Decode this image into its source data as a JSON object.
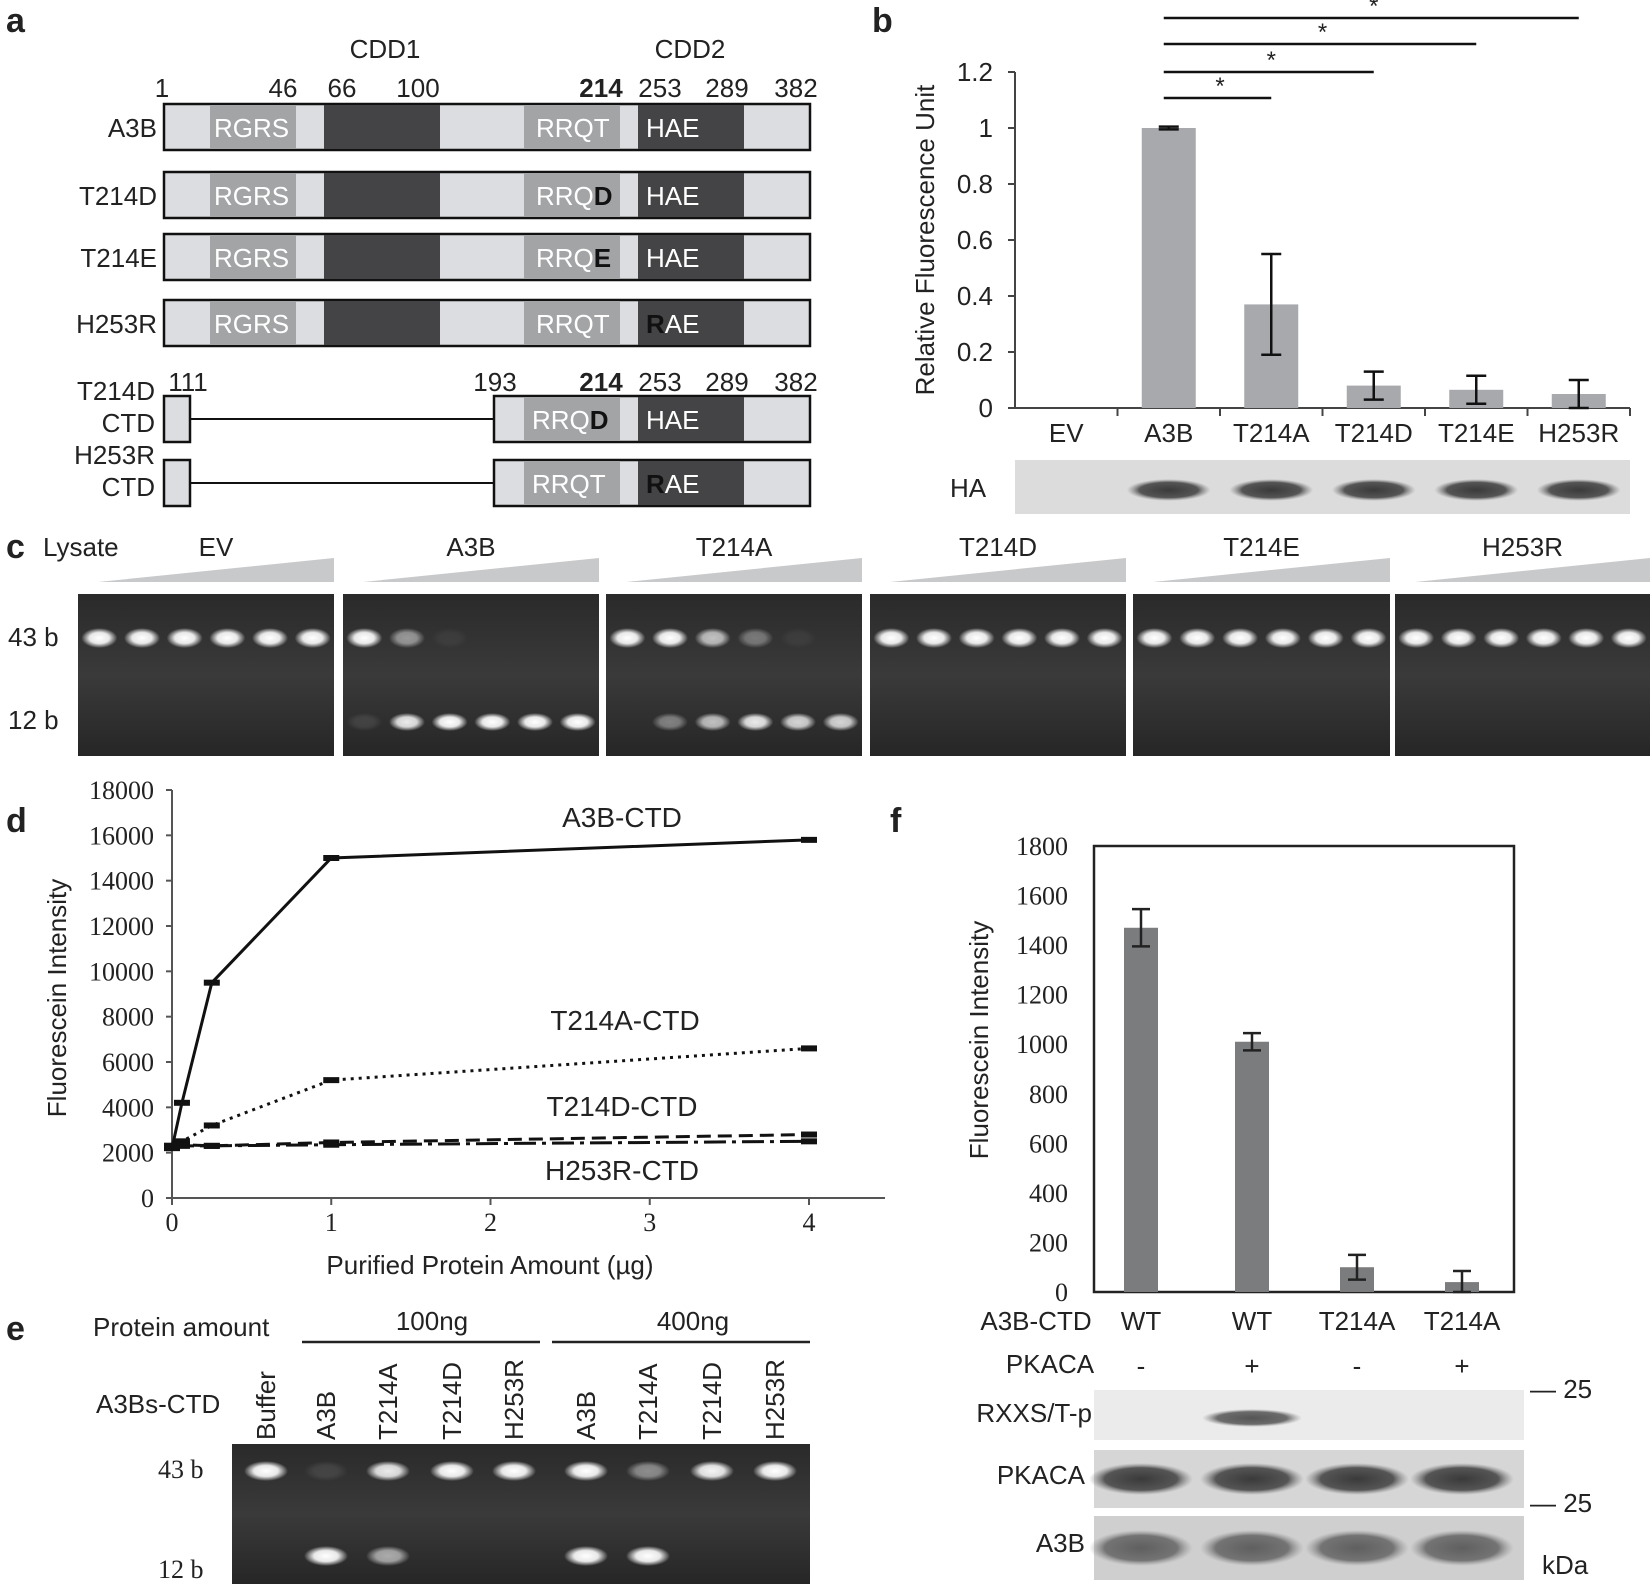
{
  "panel_labels": {
    "a": "a",
    "b": "b",
    "c": "c",
    "d": "d",
    "e": "e",
    "f": "f"
  },
  "panel_a": {
    "domain_headers": [
      "CDD1",
      "CDD2"
    ],
    "top_positions": [
      "1",
      "46",
      "66",
      "100",
      "214",
      "253",
      "289",
      "382"
    ],
    "ctd_positions": [
      "111",
      "193",
      "214",
      "253",
      "289",
      "382"
    ],
    "constructs": [
      {
        "name": "A3B",
        "motif1": "RGRS",
        "motif2": "RRQT",
        "motif3": "HAE"
      },
      {
        "name": "T214D",
        "motif1": "RGRS",
        "motif2": "RRQ",
        "motif2_mut": "D",
        "motif3": "HAE"
      },
      {
        "name": "T214E",
        "motif1": "RGRS",
        "motif2": "RRQ",
        "motif2_mut": "E",
        "motif3": "HAE"
      },
      {
        "name": "H253R",
        "motif1": "RGRS",
        "motif2": "RRQT",
        "motif3_mut": "R",
        "motif3": "AE"
      }
    ],
    "ctd_constructs": [
      {
        "name_l1": "T214D",
        "name_l2": "CTD",
        "motif2": "RRQ",
        "motif2_mut": "D",
        "motif3": "HAE"
      },
      {
        "name_l1": "H253R",
        "name_l2": "CTD",
        "motif2": "RRQT",
        "motif3_mut": "R",
        "motif3": "AE"
      }
    ]
  },
  "panel_b": {
    "chart_data": {
      "type": "bar",
      "ylabel": "Relative Fluorescence Unit",
      "categories": [
        "EV",
        "A3B",
        "T214A",
        "T214D",
        "T214E",
        "H253R"
      ],
      "values": [
        0,
        1.0,
        0.37,
        0.08,
        0.065,
        0.05
      ],
      "errors": [
        0,
        0.005,
        0.18,
        0.05,
        0.05,
        0.05
      ],
      "ylim": [
        0,
        1.2
      ],
      "yticks": [
        "0",
        "0.2",
        "0.4",
        "0.6",
        "0.8",
        "1",
        "1.2"
      ],
      "significance_mark": "*",
      "bar_color": "#a7a9ac"
    },
    "blot_label": "HA"
  },
  "panel_c": {
    "lysate_label": "Lysate",
    "groups": [
      "EV",
      "A3B",
      "T214A",
      "T214D",
      "T214E",
      "H253R"
    ],
    "band_labels": [
      "43 b",
      "12 b"
    ]
  },
  "panel_d": {
    "chart_data": {
      "type": "line",
      "xlabel": "Purified Protein Amount (µg)",
      "ylabel": "Fluorescein Intensity",
      "xlim": [
        0,
        4.5
      ],
      "ylim": [
        0,
        18000
      ],
      "xticks": [
        "0",
        "1",
        "2",
        "3",
        "4"
      ],
      "yticks": [
        "0",
        "2000",
        "4000",
        "6000",
        "8000",
        "10000",
        "12000",
        "14000",
        "16000",
        "18000"
      ],
      "x": [
        0,
        0.0625,
        0.25,
        1,
        4
      ],
      "series": [
        {
          "name": "A3B-CTD",
          "values": [
            2200,
            4200,
            9500,
            15000,
            15800
          ],
          "style": "solid"
        },
        {
          "name": "T214A-CTD",
          "values": [
            2300,
            2500,
            3200,
            5200,
            6600
          ],
          "style": "dotted"
        },
        {
          "name": "T214D-CTD",
          "values": [
            2300,
            2350,
            2300,
            2450,
            2800
          ],
          "style": "dashed"
        },
        {
          "name": "H253R-CTD",
          "values": [
            2300,
            2300,
            2300,
            2350,
            2500
          ],
          "style": "dashdot"
        }
      ]
    }
  },
  "panel_e": {
    "protein_amount_label": "Protein amount",
    "groups": [
      "100ng",
      "400ng"
    ],
    "row_label": "A3Bs-CTD",
    "lanes": [
      "Buffer",
      "A3B",
      "T214A",
      "T214D",
      "H253R",
      "A3B",
      "T214A",
      "T214D",
      "H253R"
    ],
    "band_labels": [
      "43 b",
      "12 b"
    ]
  },
  "panel_f": {
    "chart_data": {
      "type": "bar",
      "ylabel": "Fluorescein Intensity",
      "categories": [
        "WT",
        "WT",
        "T214A",
        "T214A"
      ],
      "values": [
        1470,
        1010,
        100,
        40
      ],
      "errors": [
        75,
        35,
        50,
        45
      ],
      "ylim": [
        0,
        1800
      ],
      "yticks": [
        "0",
        "200",
        "400",
        "600",
        "800",
        "1000",
        "1200",
        "1400",
        "1600",
        "1800"
      ],
      "bar_color": "#7b7c7e"
    },
    "row1_label": "A3B-CTD",
    "row2_label": "PKACA",
    "pkaca": [
      "-",
      "+",
      "-",
      "+"
    ],
    "blot_labels": [
      "RXXS/T-p",
      "PKACA",
      "A3B"
    ],
    "markers": [
      "— 25",
      "— 25"
    ],
    "unit": "kDa"
  }
}
